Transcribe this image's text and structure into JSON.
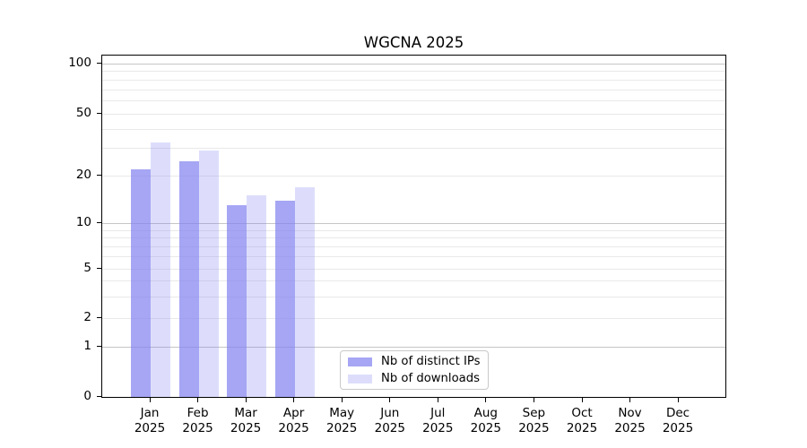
{
  "figure_title": "WGCNA 2025",
  "chart_data": {
    "type": "bar",
    "title": "WGCNA 2025",
    "categories": [
      "Jan 2025",
      "Feb 2025",
      "Mar 2025",
      "Apr 2025",
      "May 2025",
      "Jun 2025",
      "Jul 2025",
      "Aug 2025",
      "Sep 2025",
      "Oct 2025",
      "Nov 2025",
      "Dec 2025"
    ],
    "x_tick_months": [
      "Jan",
      "Feb",
      "Mar",
      "Apr",
      "May",
      "Jun",
      "Jul",
      "Aug",
      "Sep",
      "Oct",
      "Nov",
      "Dec"
    ],
    "x_tick_year": "2025",
    "series": [
      {
        "name": "Nb of distinct IPs",
        "color": "rgba(128,128,240,0.70)",
        "values": [
          22,
          25,
          13,
          14,
          0,
          0,
          0,
          0,
          0,
          0,
          0,
          0
        ]
      },
      {
        "name": "Nb of downloads",
        "color": "rgba(128,128,240,0.27)",
        "values": [
          33,
          29,
          15,
          17,
          0,
          0,
          0,
          0,
          0,
          0,
          0,
          0
        ]
      }
    ],
    "ylabel": "",
    "xlabel": "",
    "y_axis": {
      "scale": "symlog",
      "ticks": [
        0,
        1,
        2,
        5,
        10,
        20,
        50,
        100
      ],
      "tick_labels": [
        "0",
        "1",
        "2",
        "5",
        "10",
        "20",
        "50",
        "100"
      ],
      "minor_ticks": [
        3,
        4,
        6,
        7,
        8,
        9,
        30,
        40,
        60,
        70,
        80,
        90
      ],
      "decade_gridlines": [
        1,
        10,
        100
      ],
      "ylim": [
        0,
        115
      ],
      "anchors_value_to_fraction_from_top": [
        [
          0,
          1.0
        ],
        [
          1,
          0.8546
        ],
        [
          2,
          0.7702
        ],
        [
          5,
          0.6253
        ],
        [
          10,
          0.4922
        ],
        [
          20,
          0.3525
        ],
        [
          50,
          0.1715
        ],
        [
          100,
          0.0248
        ]
      ]
    },
    "grid": true,
    "legend": {
      "position": "inside-bottom-center"
    },
    "colors": {
      "major_grid": "#c6c6c6",
      "minor_grid": "#e9e9e9",
      "axis": "#000000",
      "text": "#000000",
      "legend_border": "#c9c9c9"
    }
  }
}
